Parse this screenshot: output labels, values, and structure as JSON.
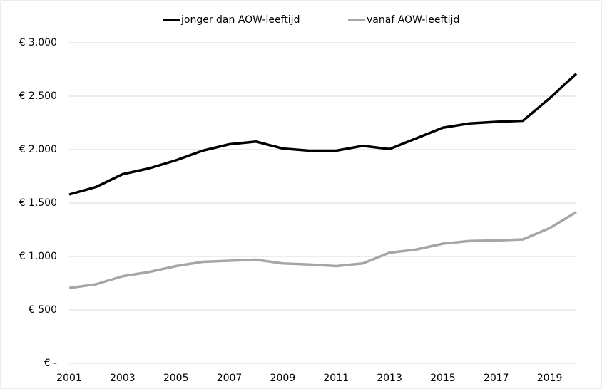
{
  "chart_data": {
    "type": "line",
    "x": [
      2001,
      2002,
      2003,
      2004,
      2005,
      2006,
      2007,
      2008,
      2009,
      2010,
      2011,
      2012,
      2013,
      2014,
      2015,
      2016,
      2017,
      2018,
      2019,
      2020
    ],
    "series": [
      {
        "name": "jonger dan AOW-leeftijd",
        "color": "#000000",
        "values": [
          1580,
          1650,
          1770,
          1825,
          1900,
          1990,
          2050,
          2075,
          2010,
          1990,
          1990,
          2035,
          2005,
          2105,
          2205,
          2245,
          2260,
          2270,
          2480,
          2710
        ]
      },
      {
        "name": "vanaf AOW-leeftijd",
        "color": "#a6a6a6",
        "values": [
          705,
          740,
          815,
          855,
          910,
          950,
          960,
          970,
          935,
          925,
          910,
          935,
          1035,
          1065,
          1120,
          1145,
          1150,
          1160,
          1265,
          1415
        ]
      }
    ],
    "xlim": [
      2001,
      2020
    ],
    "xticks": [
      2001,
      2003,
      2005,
      2007,
      2009,
      2011,
      2013,
      2015,
      2017,
      2019
    ],
    "ylim": [
      0,
      3000
    ],
    "yticks": [
      {
        "value": 0,
        "label": "€ -"
      },
      {
        "value": 500,
        "label": "€ 500"
      },
      {
        "value": 1000,
        "label": "€ 1.000"
      },
      {
        "value": 1500,
        "label": "€ 1.500"
      },
      {
        "value": 2000,
        "label": "€ 2.000"
      },
      {
        "value": 2500,
        "label": "€ 2.500"
      },
      {
        "value": 3000,
        "label": "€ 3.000"
      }
    ],
    "grid": true,
    "legend": "top"
  }
}
